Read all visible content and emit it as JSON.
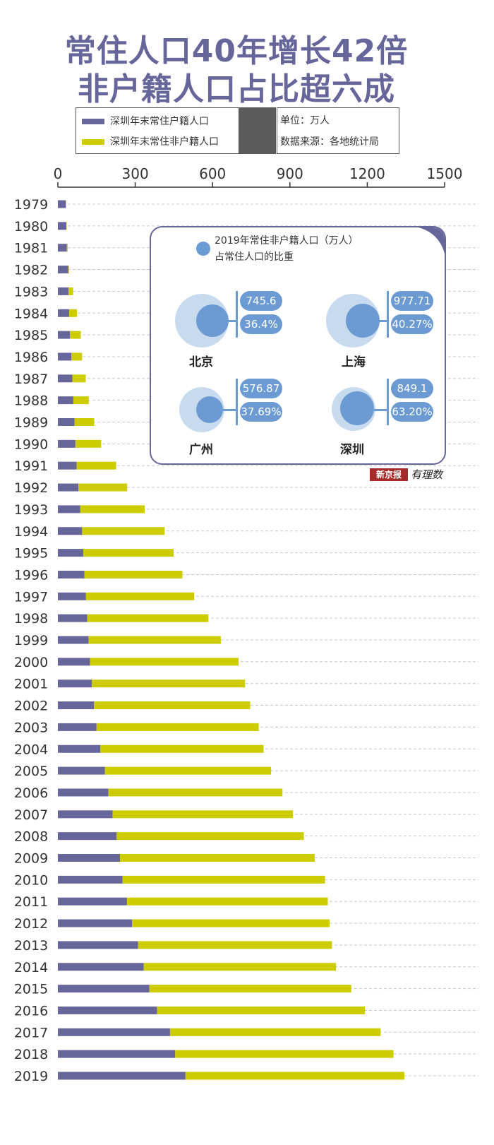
{
  "title": {
    "line1": "常住人口40年增长42倍",
    "line2": "非户籍人口占比超六成"
  },
  "legend": {
    "series1_label": "深圳年末常住户籍人口",
    "series2_label": "深圳年末常住非户籍人口"
  },
  "info": {
    "unit": "单位：万人",
    "source": "数据来源：各地统计局"
  },
  "colors": {
    "series1": "#67669a",
    "series2": "#cccc00",
    "accent": "#6b9bd2",
    "circle_light": "#c8dbee",
    "title": "#67669a"
  },
  "chart_data": {
    "type": "bar",
    "orientation": "horizontal",
    "stacked": true,
    "x_ticks": [
      "0",
      "300",
      "600",
      "900",
      "1200",
      "1500"
    ],
    "xlim": [
      0,
      1500
    ],
    "categories": [
      "1979",
      "1980",
      "1981",
      "1982",
      "1983",
      "1984",
      "1985",
      "1986",
      "1987",
      "1988",
      "1989",
      "1990",
      "1991",
      "1992",
      "1993",
      "1994",
      "1995",
      "1996",
      "1997",
      "1998",
      "1999",
      "2000",
      "2001",
      "2002",
      "2003",
      "2004",
      "2005",
      "2006",
      "2007",
      "2008",
      "2009",
      "2010",
      "2011",
      "2012",
      "2013",
      "2014",
      "2015",
      "2016",
      "2017",
      "2018",
      "2019"
    ],
    "series": [
      {
        "name": "深圳年末常住户籍人口",
        "values": [
          31,
          33,
          35,
          40,
          41,
          44,
          47,
          52,
          56,
          60,
          65,
          68,
          73,
          80,
          87,
          94,
          99,
          103,
          109,
          114,
          119,
          125,
          132,
          140,
          150,
          165,
          182,
          196,
          212,
          228,
          241,
          251,
          268,
          288,
          311,
          333,
          355,
          385,
          435,
          455,
          495
        ]
      },
      {
        "name": "深圳年末常住非户籍人口",
        "values": [
          1,
          1,
          3,
          4,
          18,
          30,
          42,
          42,
          52,
          60,
          76,
          100,
          153,
          189,
          250,
          320,
          350,
          380,
          420,
          470,
          513,
          576,
          594,
          606,
          629,
          633,
          645,
          675,
          700,
          726,
          755,
          785,
          779,
          766,
          752,
          746,
          783,
          806,
          817,
          847,
          849
        ]
      }
    ],
    "inset": {
      "title_line1": "2019年常住非户籍人口（万人）",
      "title_line2": "占常住人口的比重",
      "cities": [
        {
          "name": "北京",
          "value": "745.6",
          "percent": "36.4%"
        },
        {
          "name": "上海",
          "value": "977.71",
          "percent": "40.27%"
        },
        {
          "name": "广州",
          "value": "576.87",
          "percent": "37.69%"
        },
        {
          "name": "深圳",
          "value": "849.1",
          "percent": "63.20%"
        }
      ]
    }
  },
  "logo": {
    "brand": "新京报",
    "tag": "有理数"
  }
}
